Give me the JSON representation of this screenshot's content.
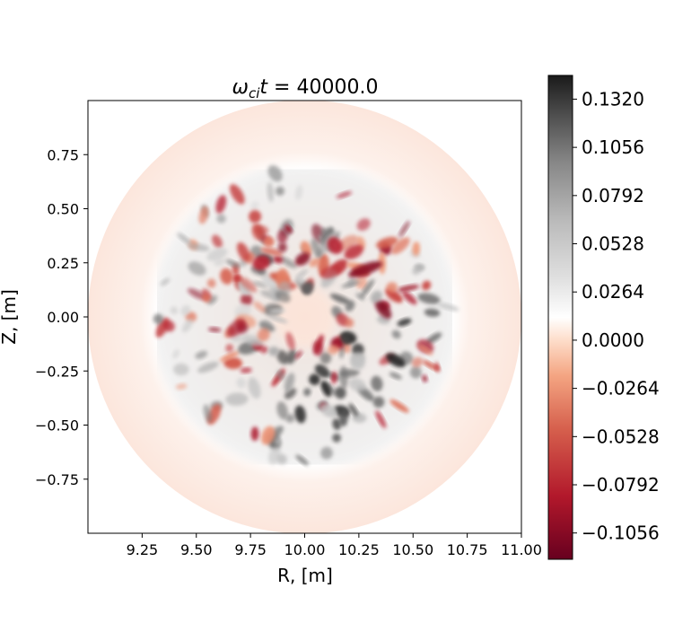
{
  "chart_data": {
    "type": "heatmap",
    "title": "ωcit = 40000.0",
    "title_parts": {
      "omega": "ω",
      "sub": "ci",
      "t": "t",
      "rest": " = 40000.0"
    },
    "xlabel": "R, [m]",
    "ylabel": "Z, [m]",
    "xlim": [
      9.0,
      11.0
    ],
    "ylim": [
      -1.0,
      1.0
    ],
    "xticks": [
      9.25,
      9.5,
      9.75,
      10.0,
      10.25,
      10.5,
      10.75,
      11.0
    ],
    "xtick_labels": [
      "9.25",
      "9.50",
      "9.75",
      "10.00",
      "10.25",
      "10.50",
      "10.75",
      "11.00"
    ],
    "yticks": [
      0.75,
      0.5,
      0.25,
      0.0,
      -0.25,
      -0.5,
      -0.75
    ],
    "ytick_labels": [
      "0.75",
      "0.50",
      "0.25",
      "0.00",
      "−0.25",
      "−0.50",
      "−0.75"
    ],
    "domain": {
      "shape": "circle",
      "center": [
        10.0,
        0.0
      ],
      "radius": 1.0
    },
    "turbulent_annulus": {
      "inner_radius": 0.12,
      "outer_radius": 0.68
    },
    "colorbar": {
      "colormap": "RdGy_r",
      "vmin": -0.12,
      "vmax": 0.145,
      "ticks": [
        0.132,
        0.1056,
        0.0792,
        0.0528,
        0.0264,
        0.0,
        -0.0264,
        -0.0528,
        -0.0792,
        -0.1056
      ],
      "tick_labels": [
        "0.1320",
        "0.1056",
        "0.0792",
        "0.0528",
        "0.0264",
        "0.0000",
        "−0.0264",
        "−0.0528",
        "−0.0792",
        "−0.1056"
      ],
      "colors": {
        "low": "#67001f",
        "mid_low": "#d6604d",
        "light_low": "#fddbc7",
        "zero": "#ffffff",
        "light_high": "#e0e0e0",
        "mid_high": "#878787",
        "high": "#1a1a1a"
      }
    },
    "grid": false,
    "legend": "none"
  }
}
